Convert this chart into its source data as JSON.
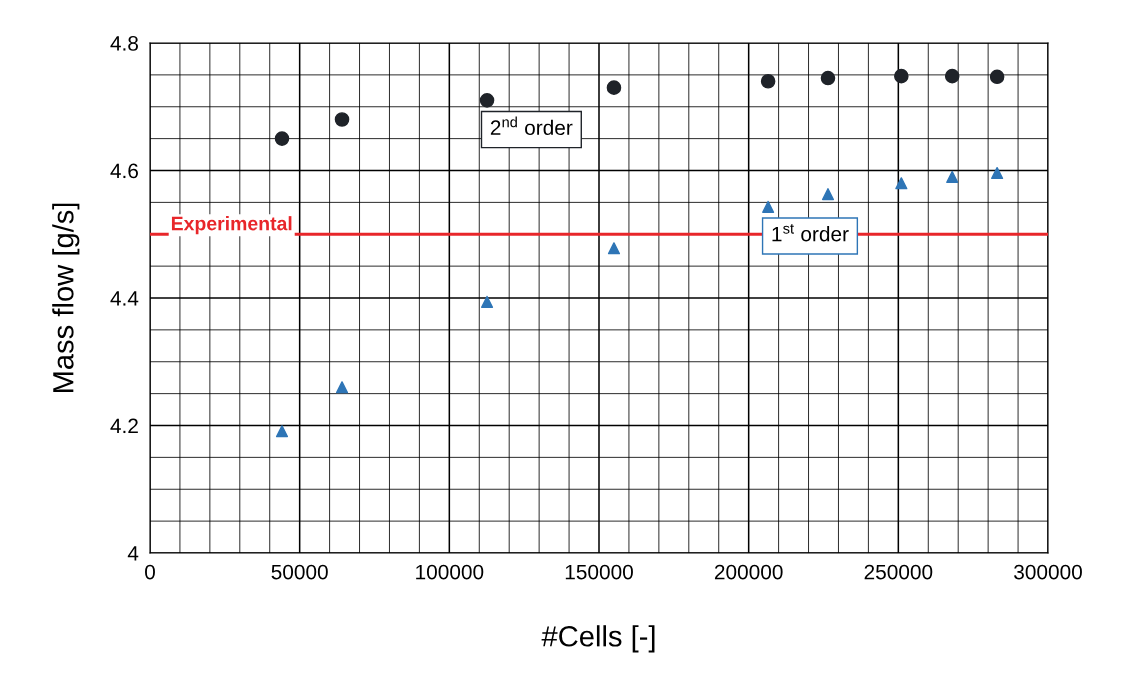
{
  "chart_data": {
    "type": "scatter",
    "xlabel": "#Cells [-]",
    "ylabel": "Mass flow [g/s]",
    "xlim": [
      0,
      300000
    ],
    "xticks": [
      0,
      50000,
      100000,
      150000,
      200000,
      250000,
      300000
    ],
    "ylim": [
      4,
      4.8
    ],
    "yticks": [
      4,
      4.2,
      4.4,
      4.6,
      4.8
    ],
    "grid": true,
    "legend": false,
    "series": [
      {
        "name": "2$^{nd}$ order",
        "color": "#1f2329",
        "marker": "circle",
        "x": [
          44100,
          64150,
          112600,
          155000,
          206500,
          226500,
          251000,
          268000,
          283000
        ],
        "values": [
          4.65,
          4.68,
          4.71,
          4.73,
          4.74,
          4.745,
          4.748,
          4.748,
          4.747
        ]
      },
      {
        "name": "1$^{st}$ order",
        "color": "#2e75b6",
        "marker": "triangle",
        "x": [
          44100,
          64150,
          112600,
          155000,
          206500,
          226500,
          251000,
          268000,
          283000
        ],
        "values": [
          4.191,
          4.26,
          4.394,
          4.478,
          4.543,
          4.563,
          4.58,
          4.59,
          4.596
        ]
      }
    ],
    "ref_lines": [
      {
        "axis": "y",
        "value": 4.5,
        "label": "Experimental",
        "color": "#e8262a"
      }
    ]
  }
}
